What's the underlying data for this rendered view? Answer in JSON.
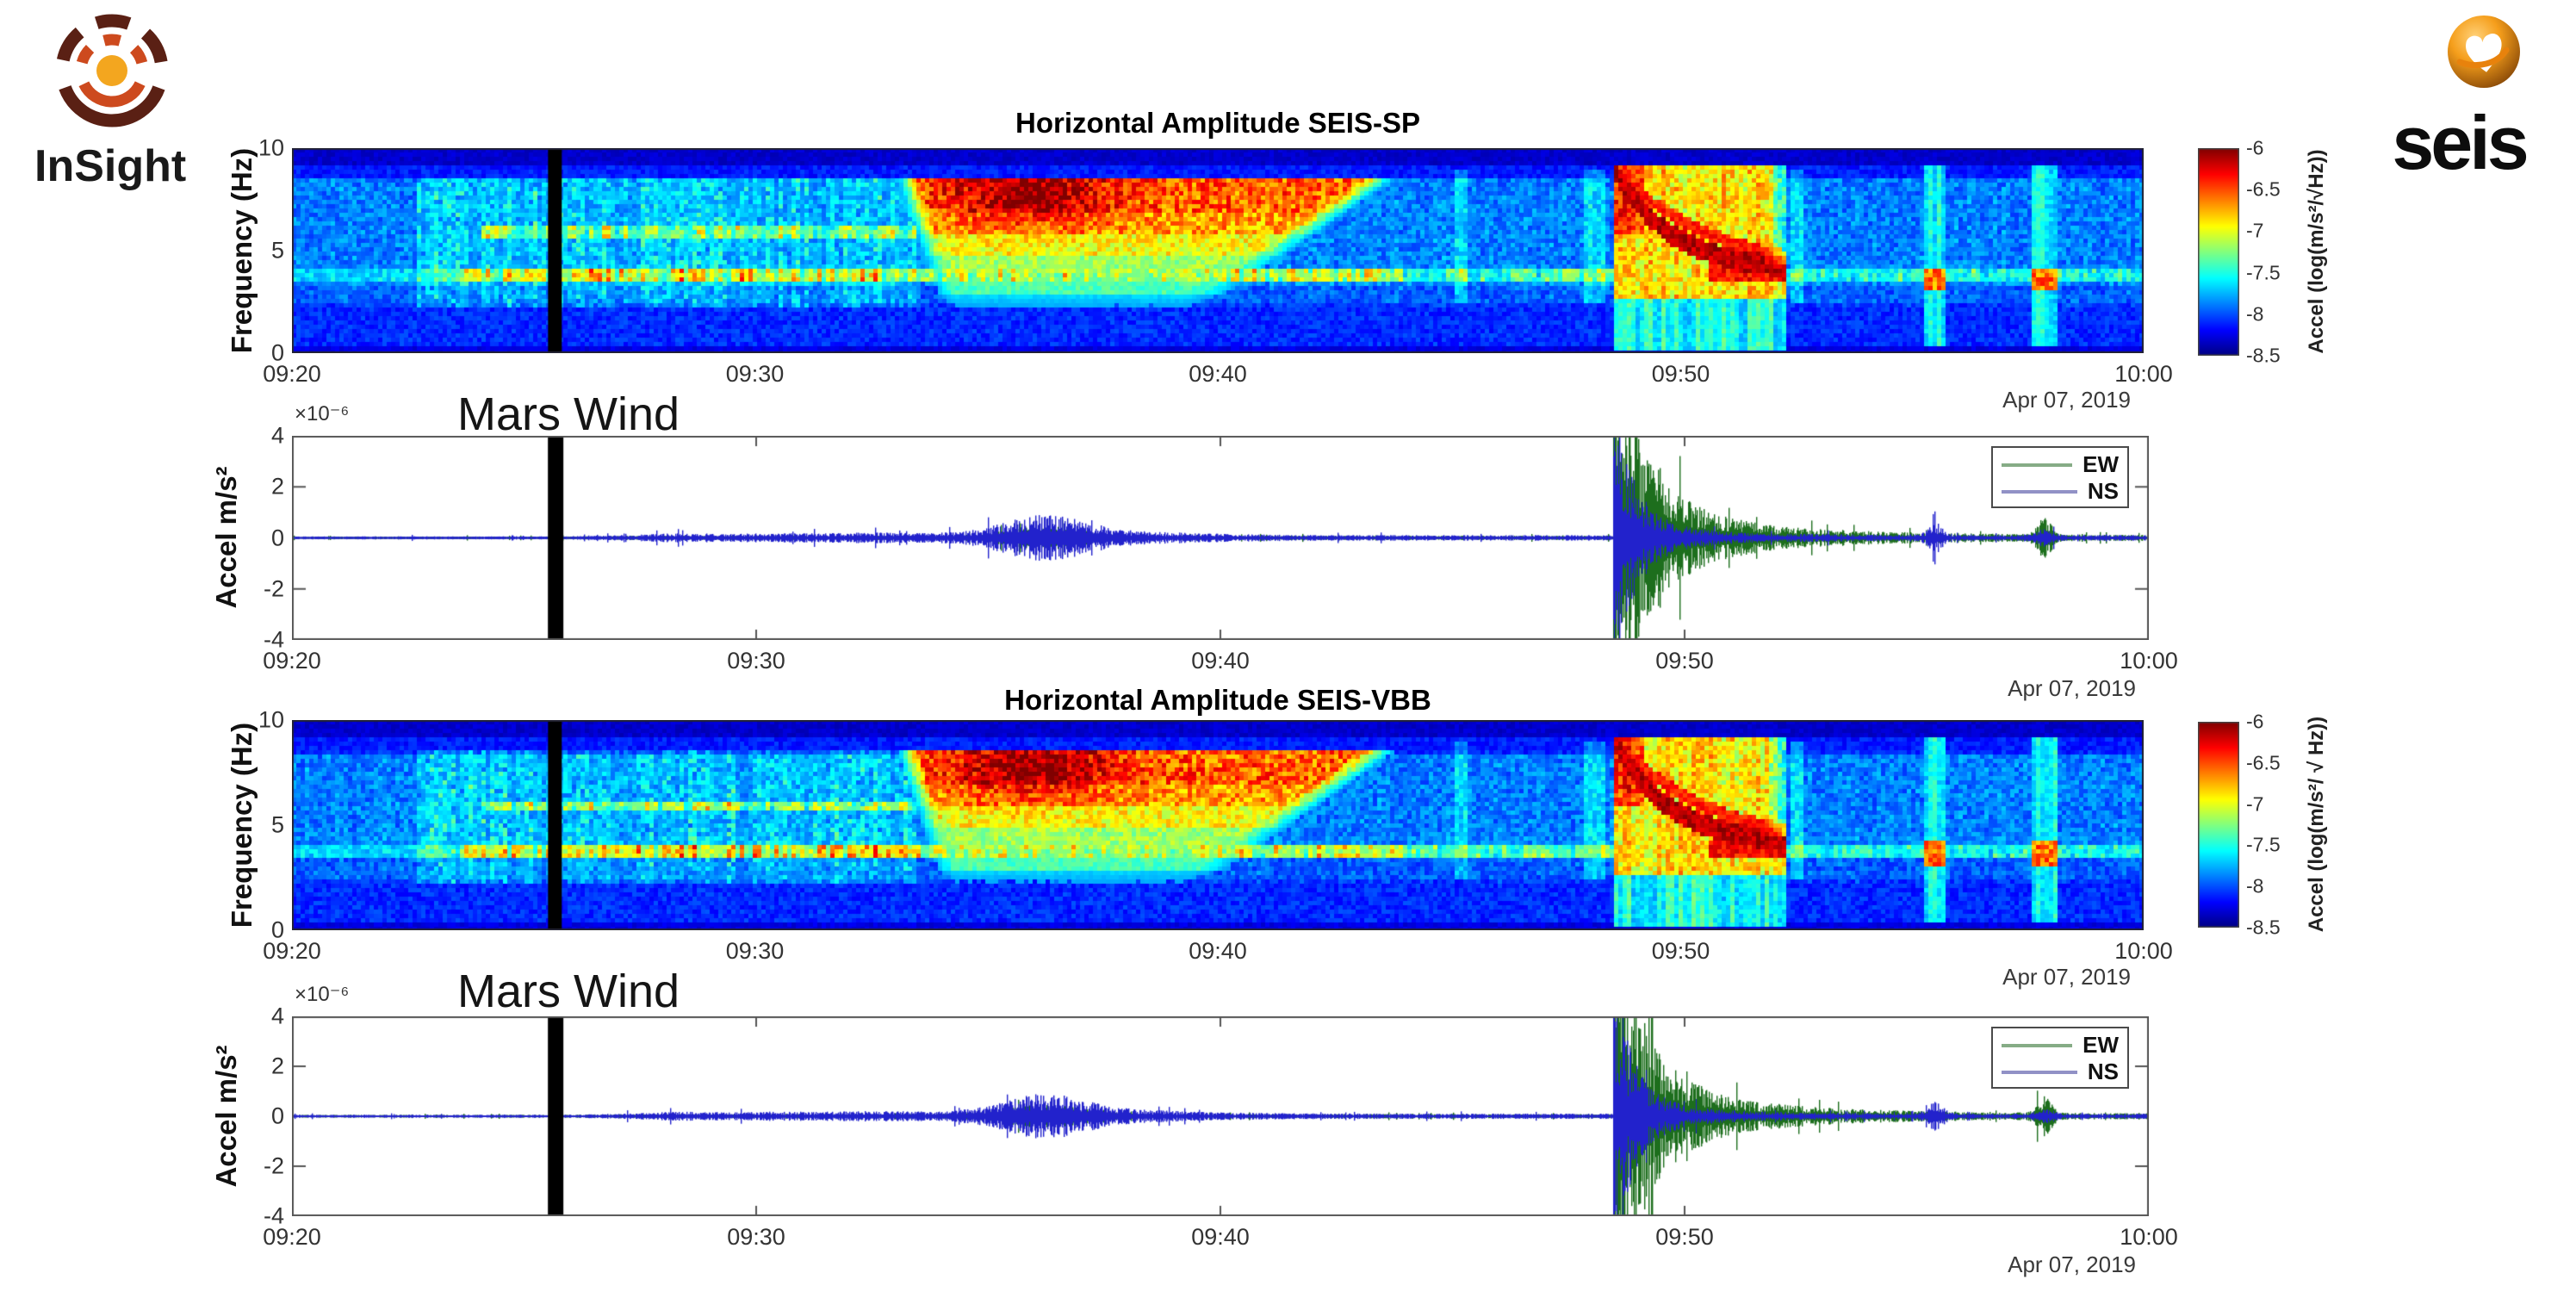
{
  "logos": {
    "insight": {
      "label": "InSight"
    },
    "seis": {
      "label": "seis"
    }
  },
  "chart_data": [
    {
      "id": "sp_spec",
      "type": "heatmap",
      "title": "Horizontal Amplitude SEIS-SP",
      "ylabel": "Frequency (Hz)",
      "ylim": [
        0,
        10
      ],
      "yticks": [
        10,
        5,
        0
      ],
      "xticks": [
        "09:20",
        "09:30",
        "09:40",
        "09:50",
        "10:00"
      ],
      "date_label": "Apr 07, 2019",
      "grid": false,
      "colorbar": {
        "label": "Accel (log(m/s²/√Hz))",
        "ticks": [
          -6,
          -6.5,
          -7,
          -7.5,
          -8,
          -8.5
        ],
        "range": [
          -8.5,
          -6
        ]
      },
      "features": {
        "gap_frac": 0.142,
        "noisy_region": [
          0.066,
          0.335
        ],
        "line_4hz": 3.95,
        "line_6hz": 6.05,
        "wind_blob": {
          "start": 0.332,
          "core_t": 0.398,
          "core_hz": 7.9,
          "end": 0.585
        },
        "event": {
          "start": 0.712,
          "end": 0.806,
          "arc_from_hz": 9.3,
          "arc_to_hz": 4.15
        },
        "stripes": [
          {
            "c": 0.886,
            "w": 0.0051
          },
          {
            "c": 0.9456,
            "w": 0.0063
          }
        ]
      },
      "seed": 11
    },
    {
      "id": "sp_ts",
      "type": "line",
      "ylabel": "Accel m/s²",
      "multiplier": "×10⁻⁶",
      "ylim": [
        -4,
        4
      ],
      "yticks": [
        4,
        2,
        0,
        -2,
        -4
      ],
      "xticks": [
        "09:20",
        "09:30",
        "09:40",
        "09:50",
        "10:00"
      ],
      "date_label": "Apr 07, 2019",
      "annotation": "Mars Wind",
      "series": [
        {
          "name": "EW",
          "color": "#1d6e1d"
        },
        {
          "name": "NS",
          "color": "#2222cc"
        }
      ],
      "legend": {
        "position": "top-right",
        "line_colors": [
          "#86ac86",
          "#9191c6"
        ]
      },
      "features": {
        "gap_frac": 0.142,
        "wind_packet": {
          "center": 0.405,
          "amp": 0.45
        },
        "event": {
          "onset": 0.7115,
          "peak_amp": 4,
          "green_tail_end": 0.807
        },
        "blips": [
          {
            "c": 0.885,
            "amp": 0.36,
            "series": "NS"
          },
          {
            "c": 0.9435,
            "amp": 0.5,
            "series": "EW"
          }
        ]
      },
      "seed": 22
    },
    {
      "id": "vbb_spec",
      "type": "heatmap",
      "title": "Horizontal Amplitude SEIS-VBB",
      "ylabel": "Frequency (Hz)",
      "ylim": [
        0,
        10
      ],
      "yticks": [
        10,
        5,
        0
      ],
      "xticks": [
        "09:20",
        "09:30",
        "09:40",
        "09:50",
        "10:00"
      ],
      "date_label": "Apr 07, 2019",
      "grid": false,
      "colorbar": {
        "label": "Accel (log(m/s²/ √ Hz))",
        "ticks": [
          -6,
          -6.5,
          -7,
          -7.5,
          -8,
          -8.5
        ],
        "range": [
          -8.5,
          -6
        ]
      },
      "features": {
        "gap_frac": 0.142,
        "noisy_region": [
          0.066,
          0.335
        ],
        "line_4hz": 3.95,
        "line_6hz": 6.05,
        "wind_blob": {
          "start": 0.332,
          "core_t": 0.398,
          "core_hz": 7.9,
          "end": 0.585
        },
        "event": {
          "start": 0.712,
          "end": 0.806,
          "arc_from_hz": 9.3,
          "arc_to_hz": 4.15
        },
        "stripes": [
          {
            "c": 0.886,
            "w": 0.0051
          },
          {
            "c": 0.9456,
            "w": 0.0063
          }
        ]
      },
      "seed": 33
    },
    {
      "id": "vbb_ts",
      "type": "line",
      "ylabel": "Accel m/s²",
      "multiplier": "×10⁻⁶",
      "ylim": [
        -4,
        4
      ],
      "yticks": [
        4,
        2,
        0,
        -2,
        -4
      ],
      "xticks": [
        "09:20",
        "09:30",
        "09:40",
        "09:50",
        "10:00"
      ],
      "date_label": "Apr 07, 2019",
      "annotation": "Mars Wind",
      "series": [
        {
          "name": "EW",
          "color": "#1d6e1d"
        },
        {
          "name": "NS",
          "color": "#2222cc"
        }
      ],
      "legend": {
        "position": "top-right",
        "line_colors": [
          "#86ac86",
          "#9191c6"
        ]
      },
      "features": {
        "gap_frac": 0.142,
        "wind_packet": {
          "center": 0.405,
          "amp": 0.45
        },
        "event": {
          "onset": 0.7115,
          "peak_amp": 4,
          "green_tail_end": 0.807
        },
        "blips": [
          {
            "c": 0.885,
            "amp": 0.36,
            "series": "NS"
          },
          {
            "c": 0.9435,
            "amp": 0.5,
            "series": "EW"
          }
        ]
      },
      "seed": 44
    }
  ]
}
